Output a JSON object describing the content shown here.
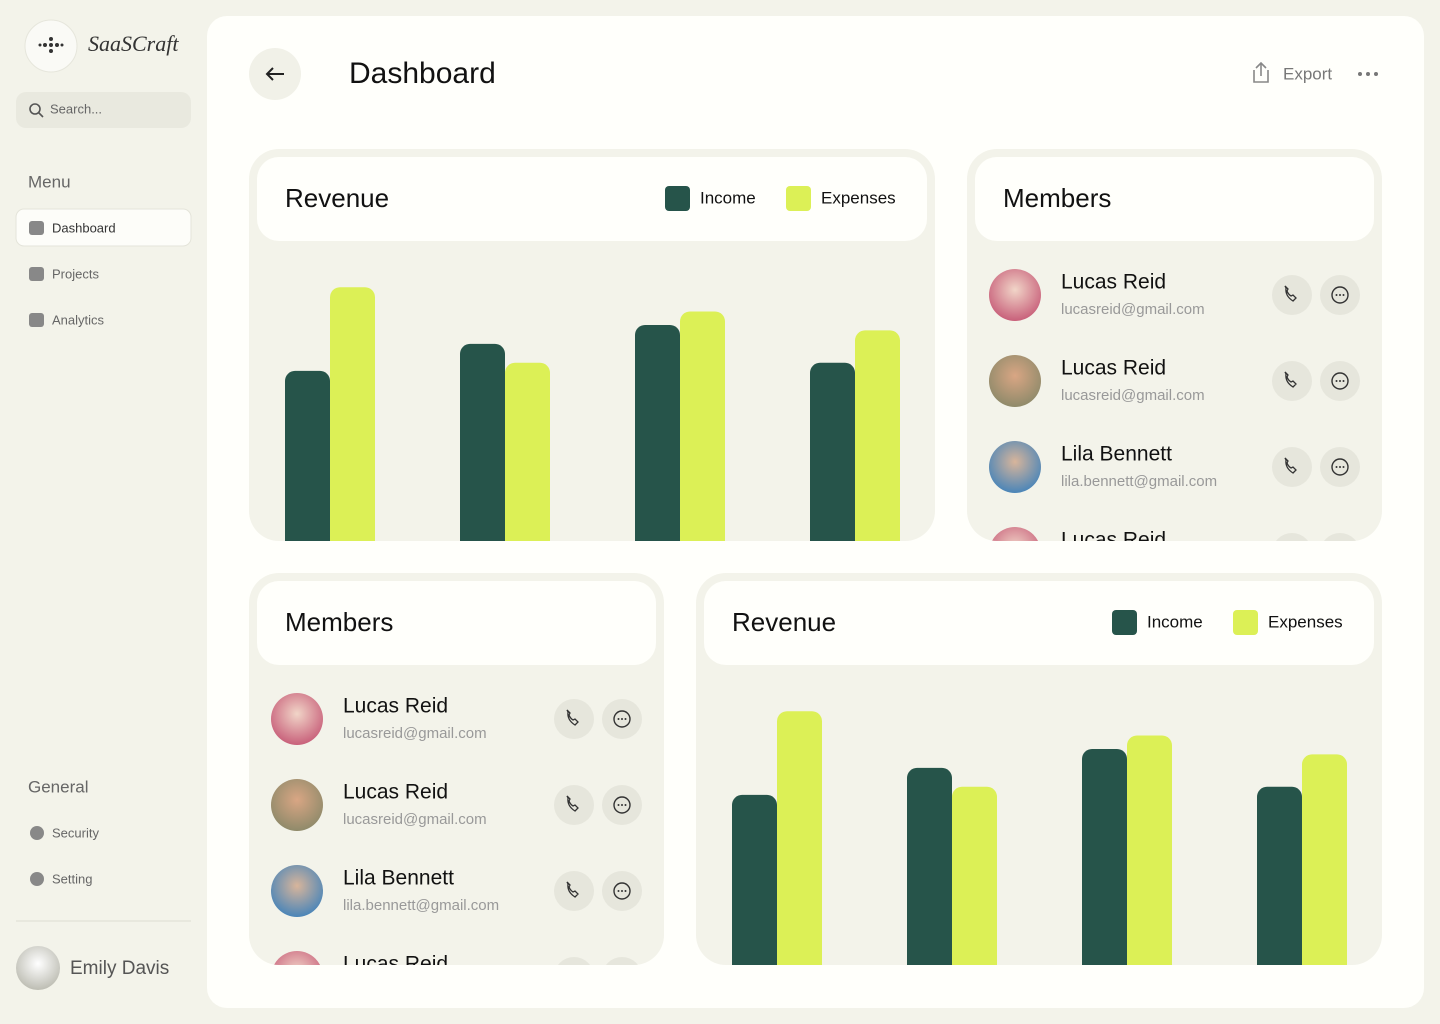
{
  "sidebar": {
    "brand": "SaaSCraft",
    "search": "Search...",
    "menu_title": "Menu",
    "menu": [
      "Dashboard",
      "Projects",
      "Analytics"
    ],
    "general_title": "General",
    "general": [
      "Security",
      "Setting"
    ],
    "user": "Emily Davis"
  },
  "header": {
    "title": "Dashboard",
    "export": "Export"
  },
  "chart_data": [
    {
      "type": "bar",
      "title": "Revenue",
      "ylim": [
        0,
        100
      ],
      "series": [
        {
          "name": "Income",
          "color": "#26544a",
          "values": [
            63,
            73,
            80,
            66
          ]
        },
        {
          "name": "Expenses",
          "color": "#dcf056",
          "values": [
            94,
            66,
            85,
            78
          ]
        }
      ]
    },
    {
      "type": "bar",
      "title": "Revenue",
      "ylim": [
        0,
        100
      ],
      "series": [
        {
          "name": "Income",
          "color": "#26544a",
          "values": [
            63,
            73,
            80,
            66
          ]
        },
        {
          "name": "Expenses",
          "color": "#dcf056",
          "values": [
            94,
            66,
            85,
            78
          ]
        }
      ]
    }
  ],
  "members_panels": [
    {
      "title": "Members",
      "members": [
        {
          "name": "Lucas Reid",
          "email": "lucasreid@gmail.com"
        },
        {
          "name": "Lucas Reid",
          "email": "lucasreid@gmail.com"
        },
        {
          "name": "Lila Bennett",
          "email": "lila.bennett@gmail.com"
        },
        {
          "name": "Lucas Reid"
        }
      ]
    },
    {
      "title": "Members",
      "members": [
        {
          "name": "Lucas Reid",
          "email": "lucasreid@gmail.com"
        },
        {
          "name": "Lucas Reid",
          "email": "lucasreid@gmail.com"
        },
        {
          "name": "Lila Bennett",
          "email": "lila.bennett@gmail.com"
        },
        {
          "name": "Lucas Reid"
        }
      ]
    }
  ]
}
